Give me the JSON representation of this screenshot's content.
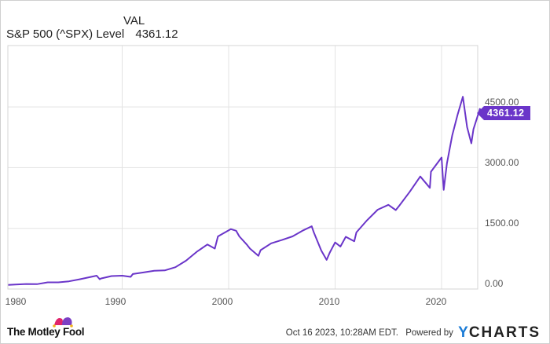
{
  "legend": {
    "column_header": "VAL",
    "series_label": "S&P 500 (^SPX) Level",
    "series_value": "4361.12"
  },
  "axes": {
    "y_ticks": [
      "4500.00",
      "3000.00",
      "1500.00",
      "0.00"
    ],
    "x_ticks": [
      "1980",
      "1990",
      "2000",
      "2010",
      "2020"
    ]
  },
  "last_value_badge": "4361.12",
  "colors": {
    "line": "#6a35c9",
    "badge": "#6a35c9",
    "grid": "#e3e3e3",
    "ycharts_y": "#1a7bd6"
  },
  "footer": {
    "brand": "The Motley Fool",
    "timestamp": "Oct 16 2023, 10:28AM EDT.",
    "powered_by": "Powered by",
    "provider": "CHARTS",
    "provider_mark": "Y"
  },
  "chart_data": {
    "type": "line",
    "title": "S&P 500 (^SPX) Level",
    "xlabel": "",
    "ylabel": "",
    "ylim": [
      0,
      4950
    ],
    "xlim": [
      1979.3,
      2023.8
    ],
    "grid": true,
    "legend_position": "top-left",
    "values_are_estimates": true,
    "estimation_note": "Series values were approximated by eye from the rendered line (pixel positions converted via gridlines at 0/1500/3000/4500). They are not read from data labels; expect roughly ±50-100 point error and approximate peak/trough timing. Only the final value 4361.12 is shown on the chart.",
    "series": [
      {
        "name": "S&P 500 (^SPX) Level",
        "x": [
          1979.3,
          1980,
          1981,
          1982,
          1983,
          1984,
          1985,
          1986,
          1987.6,
          1987.9,
          1988,
          1989,
          1990,
          1990.8,
          1991,
          1992,
          1993,
          1994,
          1995,
          1996,
          1997,
          1998,
          1998.7,
          1999,
          2000.2,
          2000.7,
          2001,
          2001.7,
          2002,
          2002.8,
          2003,
          2004,
          2005,
          2006,
          2007,
          2007.8,
          2008,
          2008.7,
          2009.2,
          2009.5,
          2010,
          2010.5,
          2011,
          2011.8,
          2012,
          2013,
          2014,
          2015,
          2015.7,
          2016,
          2017,
          2018,
          2018.9,
          2019,
          2020,
          2020.2,
          2020.5,
          2021,
          2021.5,
          2022,
          2022.4,
          2022.8,
          2023,
          2023.6,
          2023.8
        ],
        "values": [
          100,
          110,
          125,
          120,
          165,
          165,
          190,
          240,
          330,
          240,
          260,
          320,
          330,
          300,
          370,
          410,
          450,
          460,
          540,
          700,
          920,
          1100,
          1000,
          1300,
          1480,
          1440,
          1300,
          1100,
          1000,
          820,
          960,
          1130,
          1210,
          1300,
          1450,
          1550,
          1400,
          950,
          720,
          900,
          1150,
          1050,
          1290,
          1180,
          1400,
          1700,
          1960,
          2080,
          1950,
          2050,
          2400,
          2780,
          2500,
          2900,
          3250,
          2450,
          3100,
          3800,
          4300,
          4750,
          4000,
          3600,
          3950,
          4450,
          4361.12
        ]
      }
    ]
  }
}
